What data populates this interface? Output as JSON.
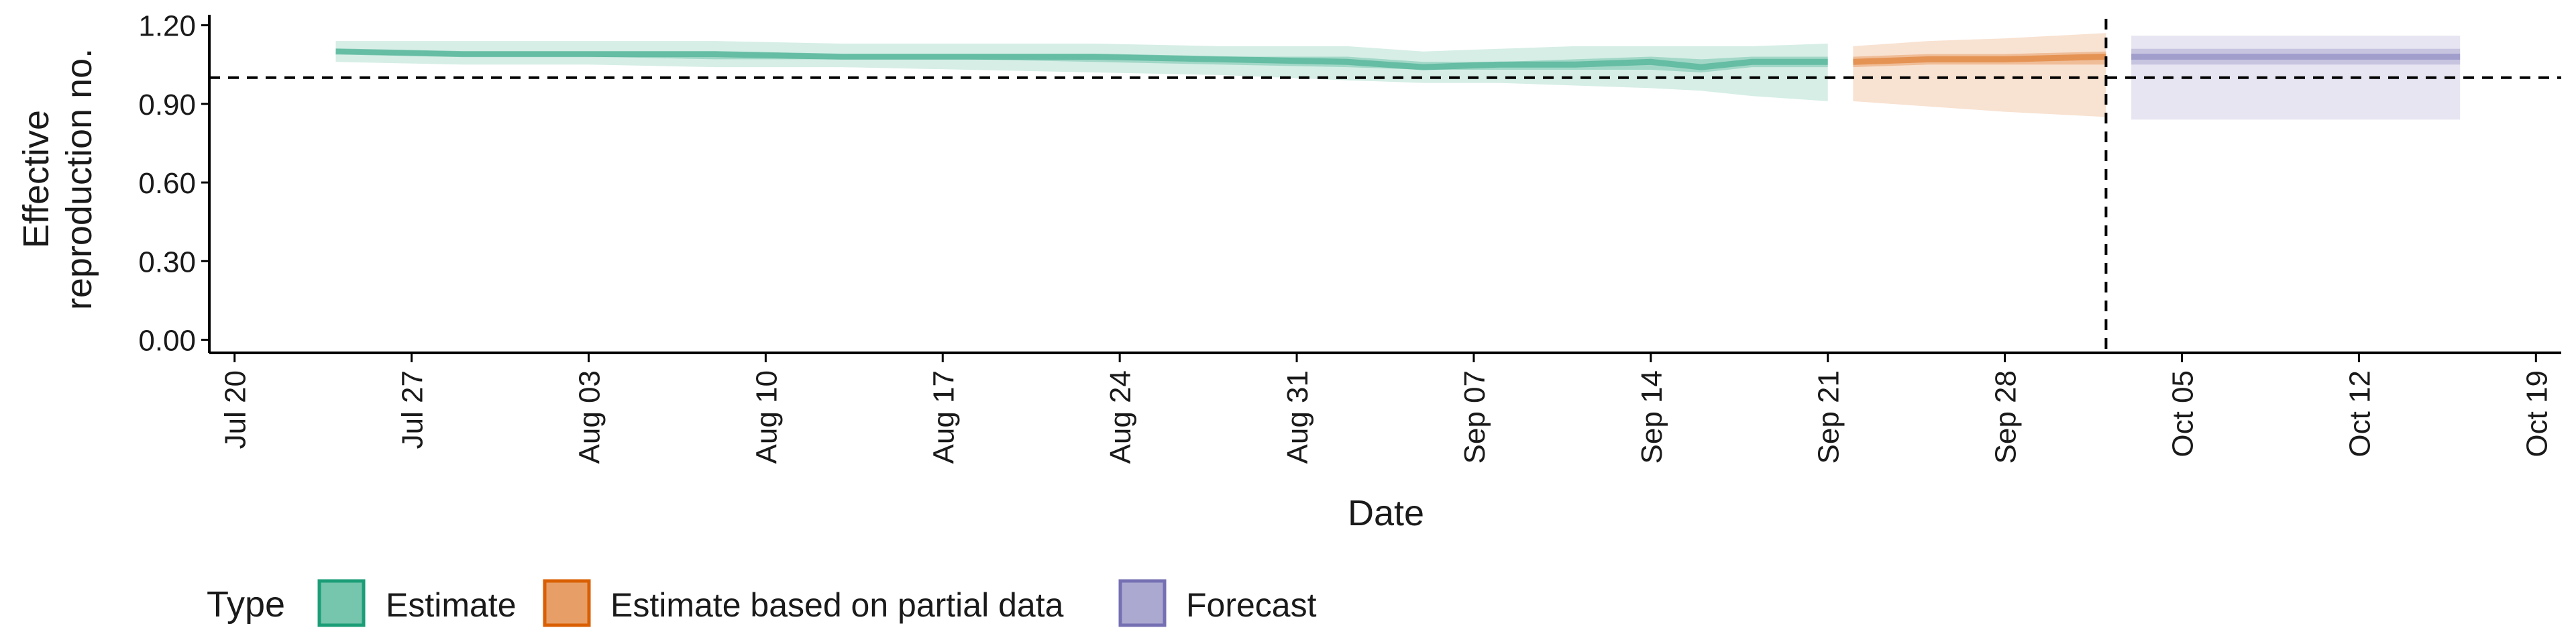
{
  "chart_data": {
    "type": "area",
    "title": "",
    "xlabel": "Date",
    "ylabel_lines": [
      "Effective",
      "reproduction no."
    ],
    "x_range": [
      "2020-07-19",
      "2020-10-20"
    ],
    "ylim": [
      -0.05,
      1.24
    ],
    "y_ticks": [
      {
        "value": 0.0,
        "label": "0.00"
      },
      {
        "value": 0.3,
        "label": "0.30"
      },
      {
        "value": 0.6,
        "label": "0.60"
      },
      {
        "value": 0.9,
        "label": "0.90"
      },
      {
        "value": 1.2,
        "label": "1.20"
      }
    ],
    "x_ticks": [
      {
        "date": "2020-07-20",
        "label": "Jul 20"
      },
      {
        "date": "2020-07-27",
        "label": "Jul 27"
      },
      {
        "date": "2020-08-03",
        "label": "Aug 03"
      },
      {
        "date": "2020-08-10",
        "label": "Aug 10"
      },
      {
        "date": "2020-08-17",
        "label": "Aug 17"
      },
      {
        "date": "2020-08-24",
        "label": "Aug 24"
      },
      {
        "date": "2020-08-31",
        "label": "Aug 31"
      },
      {
        "date": "2020-09-07",
        "label": "Sep 07"
      },
      {
        "date": "2020-09-14",
        "label": "Sep 14"
      },
      {
        "date": "2020-09-21",
        "label": "Sep 21"
      },
      {
        "date": "2020-09-28",
        "label": "Sep 28"
      },
      {
        "date": "2020-10-05",
        "label": "Oct 05"
      },
      {
        "date": "2020-10-12",
        "label": "Oct 12"
      },
      {
        "date": "2020-10-19",
        "label": "Oct 19"
      }
    ],
    "reference_line_y": 1.0,
    "reference_line_x": "2020-10-02",
    "grid": false,
    "legend_position": "bottom-left",
    "legend_title": "Type",
    "series": [
      {
        "name": "Estimate",
        "color": "#1b9e77",
        "x": [
          "2020-07-24",
          "2020-07-29",
          "2020-08-03",
          "2020-08-08",
          "2020-08-13",
          "2020-08-18",
          "2020-08-23",
          "2020-08-28",
          "2020-09-02",
          "2020-09-05",
          "2020-09-08",
          "2020-09-11",
          "2020-09-14",
          "2020-09-16",
          "2020-09-18",
          "2020-09-21"
        ],
        "median": [
          1.1,
          1.09,
          1.09,
          1.09,
          1.08,
          1.08,
          1.08,
          1.07,
          1.06,
          1.04,
          1.05,
          1.05,
          1.06,
          1.04,
          1.06,
          1.06
        ],
        "lower_50": [
          1.09,
          1.08,
          1.08,
          1.07,
          1.07,
          1.07,
          1.06,
          1.05,
          1.04,
          1.03,
          1.03,
          1.03,
          1.03,
          1.02,
          1.04,
          1.04
        ],
        "upper_50": [
          1.11,
          1.1,
          1.1,
          1.1,
          1.09,
          1.09,
          1.09,
          1.08,
          1.08,
          1.06,
          1.06,
          1.07,
          1.08,
          1.07,
          1.08,
          1.08
        ],
        "lower_90": [
          1.06,
          1.05,
          1.05,
          1.04,
          1.04,
          1.03,
          1.02,
          1.01,
          0.99,
          0.98,
          0.98,
          0.97,
          0.96,
          0.95,
          0.93,
          0.91
        ],
        "upper_90": [
          1.14,
          1.14,
          1.14,
          1.14,
          1.13,
          1.13,
          1.13,
          1.12,
          1.12,
          1.1,
          1.11,
          1.12,
          1.12,
          1.12,
          1.12,
          1.13
        ]
      },
      {
        "name": "Estimate based on partial data",
        "color": "#d95f02",
        "x": [
          "2020-09-22",
          "2020-09-25",
          "2020-09-28",
          "2020-10-02"
        ],
        "median": [
          1.06,
          1.07,
          1.07,
          1.08
        ],
        "lower_50": [
          1.04,
          1.05,
          1.05,
          1.05
        ],
        "upper_50": [
          1.08,
          1.09,
          1.09,
          1.1
        ],
        "lower_90": [
          0.91,
          0.89,
          0.87,
          0.85
        ],
        "upper_90": [
          1.12,
          1.14,
          1.15,
          1.17
        ]
      },
      {
        "name": "Forecast",
        "color": "#7570b3",
        "x": [
          "2020-10-03",
          "2020-10-09",
          "2020-10-16"
        ],
        "median": [
          1.08,
          1.08,
          1.08
        ],
        "lower_50": [
          1.05,
          1.05,
          1.05
        ],
        "upper_50": [
          1.11,
          1.11,
          1.11
        ],
        "lower_90": [
          0.84,
          0.84,
          0.84
        ],
        "upper_90": [
          1.16,
          1.16,
          1.16
        ]
      }
    ]
  }
}
